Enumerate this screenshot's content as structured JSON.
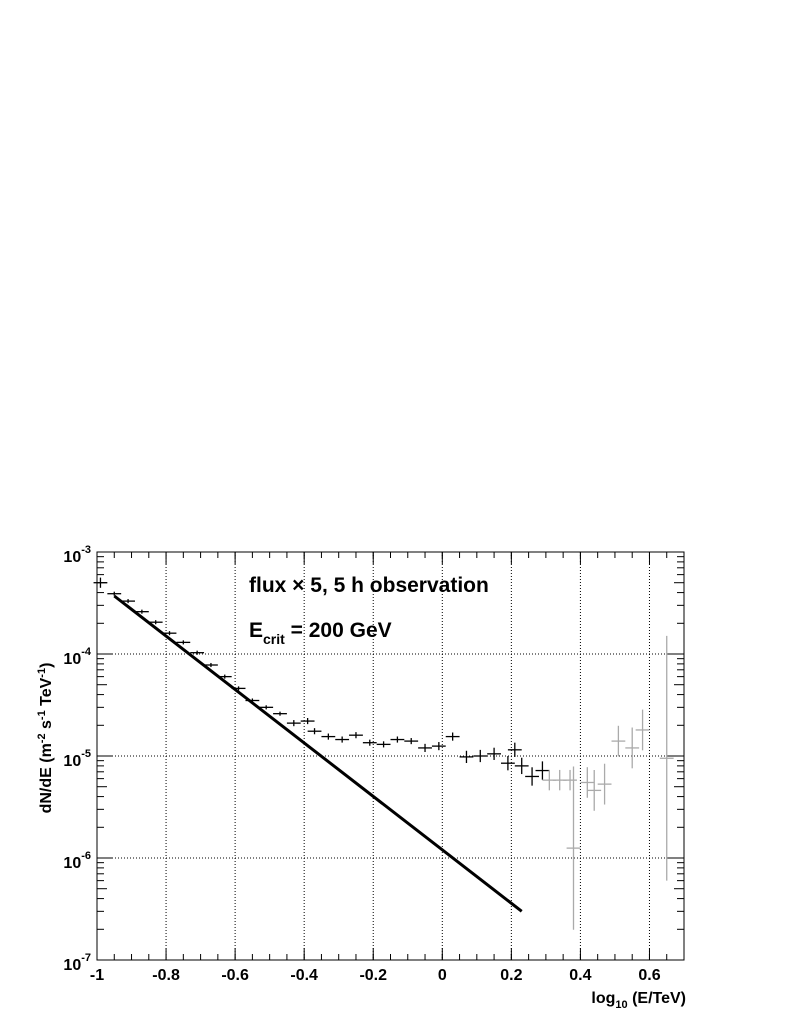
{
  "chart_data": {
    "type": "scatter",
    "title": "",
    "xlabel": "log10 (E/TeV)",
    "ylabel": "dN/dE (m-2 s-1 TeV-1)",
    "xlim": [
      -1.0,
      0.7
    ],
    "ylim": [
      1e-07,
      0.001
    ],
    "yscale": "log",
    "grid": true,
    "x_ticks": [
      "-1",
      "-0.8",
      "-0.6",
      "-0.4",
      "-0.2",
      "0",
      "0.2",
      "0.4",
      "0.6"
    ],
    "x_tick_values": [
      -1.0,
      -0.8,
      -0.6,
      -0.4,
      -0.2,
      0.0,
      0.2,
      0.4,
      0.6
    ],
    "y_ticks": [
      {
        "value": 1e-07,
        "base": "10",
        "exp": "-7"
      },
      {
        "value": 1e-06,
        "base": "10",
        "exp": "-6"
      },
      {
        "value": 1e-05,
        "base": "10",
        "exp": "-5"
      },
      {
        "value": 0.0001,
        "base": "10",
        "exp": "-4"
      },
      {
        "value": 0.001,
        "base": "10",
        "exp": "-3"
      }
    ],
    "axis_titles": {
      "x": {
        "pre": "log",
        "sub": "10",
        "post": " (E/TeV)"
      },
      "y": {
        "pre": "dN/dE  (m",
        "sup1": "-2",
        "mid1": " s",
        "sup2": "-1",
        "mid2": " TeV",
        "sup3": "-1",
        "post": ")"
      }
    },
    "annotations": [
      {
        "text": "flux × 5, 5 h observation"
      },
      {
        "pre": "E",
        "sub": "crit",
        "post": " = 200 GeV"
      }
    ],
    "series": [
      {
        "style": "errorbar",
        "color": "#000000",
        "points": [
          {
            "x": -0.99,
            "y": 0.0005,
            "yerr": 0.05
          },
          {
            "x": -0.95,
            "y": 0.00039,
            "yerr": 0.02
          },
          {
            "x": -0.91,
            "y": 0.00033,
            "yerr": 0.02
          },
          {
            "x": -0.87,
            "y": 0.00026,
            "yerr": 0.02
          },
          {
            "x": -0.83,
            "y": 0.000205,
            "yerr": 0.02
          },
          {
            "x": -0.79,
            "y": 0.00016,
            "yerr": 0.02
          },
          {
            "x": -0.75,
            "y": 0.00013,
            "yerr": 0.02
          },
          {
            "x": -0.71,
            "y": 0.000103,
            "yerr": 0.02
          },
          {
            "x": -0.67,
            "y": 7.8e-05,
            "yerr": 0.02
          },
          {
            "x": -0.63,
            "y": 6e-05,
            "yerr": 0.02
          },
          {
            "x": -0.59,
            "y": 4.6e-05,
            "yerr": 0.02
          },
          {
            "x": -0.55,
            "y": 3.5e-05,
            "yerr": 0.02
          },
          {
            "x": -0.51,
            "y": 3e-05,
            "yerr": 0.02
          },
          {
            "x": -0.47,
            "y": 2.6e-05,
            "yerr": 0.02
          },
          {
            "x": -0.43,
            "y": 2.1e-05,
            "yerr": 0.03
          },
          {
            "x": -0.39,
            "y": 2.2e-05,
            "yerr": 0.03
          },
          {
            "x": -0.37,
            "y": 1.75e-05,
            "yerr": 0.03
          },
          {
            "x": -0.33,
            "y": 1.55e-05,
            "yerr": 0.03
          },
          {
            "x": -0.29,
            "y": 1.45e-05,
            "yerr": 0.03
          },
          {
            "x": -0.25,
            "y": 1.6e-05,
            "yerr": 0.03
          },
          {
            "x": -0.21,
            "y": 1.35e-05,
            "yerr": 0.03
          },
          {
            "x": -0.17,
            "y": 1.3e-05,
            "yerr": 0.03
          },
          {
            "x": -0.13,
            "y": 1.45e-05,
            "yerr": 0.03
          },
          {
            "x": -0.09,
            "y": 1.4e-05,
            "yerr": 0.03
          },
          {
            "x": -0.05,
            "y": 1.2e-05,
            "yerr": 0.04
          },
          {
            "x": -0.01,
            "y": 1.25e-05,
            "yerr": 0.04
          },
          {
            "x": 0.03,
            "y": 1.55e-05,
            "yerr": 0.04
          },
          {
            "x": 0.07,
            "y": 9.8e-06,
            "yerr": 0.06
          },
          {
            "x": 0.11,
            "y": 1e-05,
            "yerr": 0.06
          },
          {
            "x": 0.15,
            "y": 1.05e-05,
            "yerr": 0.06
          },
          {
            "x": 0.19,
            "y": 8.5e-06,
            "yerr": 0.07
          },
          {
            "x": 0.21,
            "y": 1.15e-05,
            "yerr": 0.07
          },
          {
            "x": 0.23,
            "y": 8e-06,
            "yerr": 0.08
          },
          {
            "x": 0.26,
            "y": 6.3e-06,
            "yerr": 0.09
          },
          {
            "x": 0.29,
            "y": 7.2e-06,
            "yerr": 0.09
          }
        ]
      },
      {
        "style": "errorbar",
        "color": "#aaaaaa",
        "points": [
          {
            "x": 0.31,
            "y": 5.8e-06,
            "yerr": 0.1
          },
          {
            "x": 0.34,
            "y": 5.8e-06,
            "yerr": 0.1
          },
          {
            "x": 0.37,
            "y": 5.8e-06,
            "yerr": 0.1
          },
          {
            "x": 0.38,
            "y": 1.25e-06,
            "yerr": 0.8
          },
          {
            "x": 0.42,
            "y": 5.5e-06,
            "yerr": 0.15
          },
          {
            "x": 0.44,
            "y": 4.6e-06,
            "yerr": 0.2
          },
          {
            "x": 0.47,
            "y": 5.3e-06,
            "yerr": 0.2
          },
          {
            "x": 0.51,
            "y": 1.4e-05,
            "yerr": 0.15
          },
          {
            "x": 0.55,
            "y": 1.2e-05,
            "yerr": 0.2
          },
          {
            "x": 0.58,
            "y": 1.8e-05,
            "yerr": 0.2
          },
          {
            "x": 0.65,
            "y": 9.5e-06,
            "yerr": 1.2
          }
        ]
      },
      {
        "style": "line",
        "color": "#000000",
        "points": [
          {
            "x": -0.95,
            "y": 0.00037
          },
          {
            "x": 0.23,
            "y": 3e-07
          }
        ]
      }
    ]
  }
}
